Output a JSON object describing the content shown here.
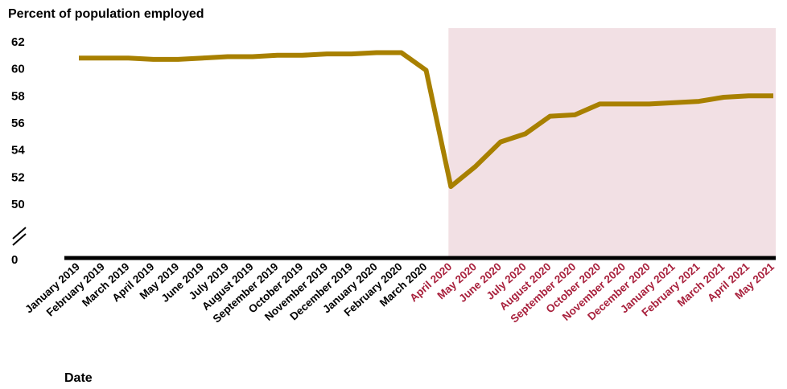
{
  "chart_data": {
    "type": "line",
    "title": "",
    "ylabel": "Percent of population employed",
    "xlabel": "Date",
    "y_ticks": [
      "62",
      "60",
      "58",
      "56",
      "54",
      "52",
      "50",
      "0"
    ],
    "axis_break": true,
    "ylim": [
      50,
      62
    ],
    "categories": [
      "January 2019",
      "February 2019",
      "March 2019",
      "April 2019",
      "May 2019",
      "June 2019",
      "July 2019",
      "August 2019",
      "September  2019",
      "October 2019",
      "November 2019",
      "December 2019",
      "January 2020",
      "February 2020",
      "March 2020",
      "April  2020",
      "May 2020",
      "June 2020",
      "July 2020",
      "August 2020",
      "September 2020",
      "October 2020",
      "November 2020",
      "December 2020",
      "January 2021",
      "February 2021",
      "March 2021",
      "April 2021",
      "May 2021"
    ],
    "series": [
      {
        "values": [
          60.8,
          60.8,
          60.8,
          60.7,
          60.7,
          60.8,
          60.9,
          60.9,
          61.0,
          61.0,
          61.1,
          61.1,
          61.2,
          61.2,
          59.9,
          51.3,
          52.8,
          54.6,
          55.2,
          56.5,
          56.6,
          57.4,
          57.4,
          57.4,
          57.5,
          57.6,
          57.9,
          58.0,
          58.0
        ],
        "color": "#A88000"
      }
    ],
    "shaded_region": {
      "from": "April  2020",
      "to": "May 2021",
      "color": "#F2E0E4"
    },
    "tick_colors": {
      "normal": "#000000",
      "highlight": "#A8203C"
    }
  }
}
